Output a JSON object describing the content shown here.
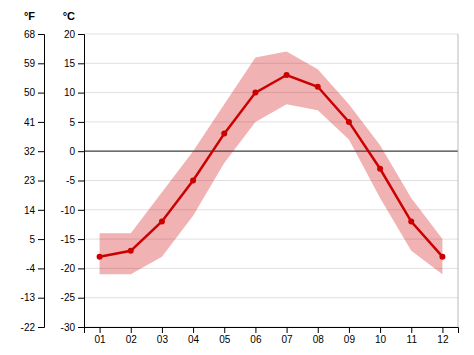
{
  "chart_data": {
    "type": "line",
    "categories": [
      "01",
      "02",
      "03",
      "04",
      "05",
      "06",
      "07",
      "08",
      "09",
      "10",
      "11",
      "12"
    ],
    "values": [
      -18,
      -17,
      -12,
      -5,
      3,
      10,
      13,
      11,
      5,
      -3,
      -12,
      -18
    ],
    "low": [
      -21,
      -21,
      -18,
      -11,
      -2,
      5,
      8,
      7,
      2,
      -8,
      -17,
      -21
    ],
    "high": [
      -14,
      -14,
      -7,
      0,
      8,
      16,
      17,
      14,
      8,
      1,
      -8,
      -15
    ],
    "zero_line": 0,
    "color": "#cc0000",
    "marker": "circle",
    "ylabel": "°C",
    "ylim": [
      -30,
      20
    ],
    "yticks": [
      -30,
      -25,
      -20,
      -15,
      -10,
      -5,
      0,
      5,
      10,
      15,
      20
    ],
    "y2label": "°F",
    "y2lim": [
      -22,
      68
    ],
    "y2ticks": [
      -22,
      -13,
      -4,
      5,
      14,
      23,
      32,
      41,
      50,
      59,
      68
    ],
    "grid": true
  }
}
